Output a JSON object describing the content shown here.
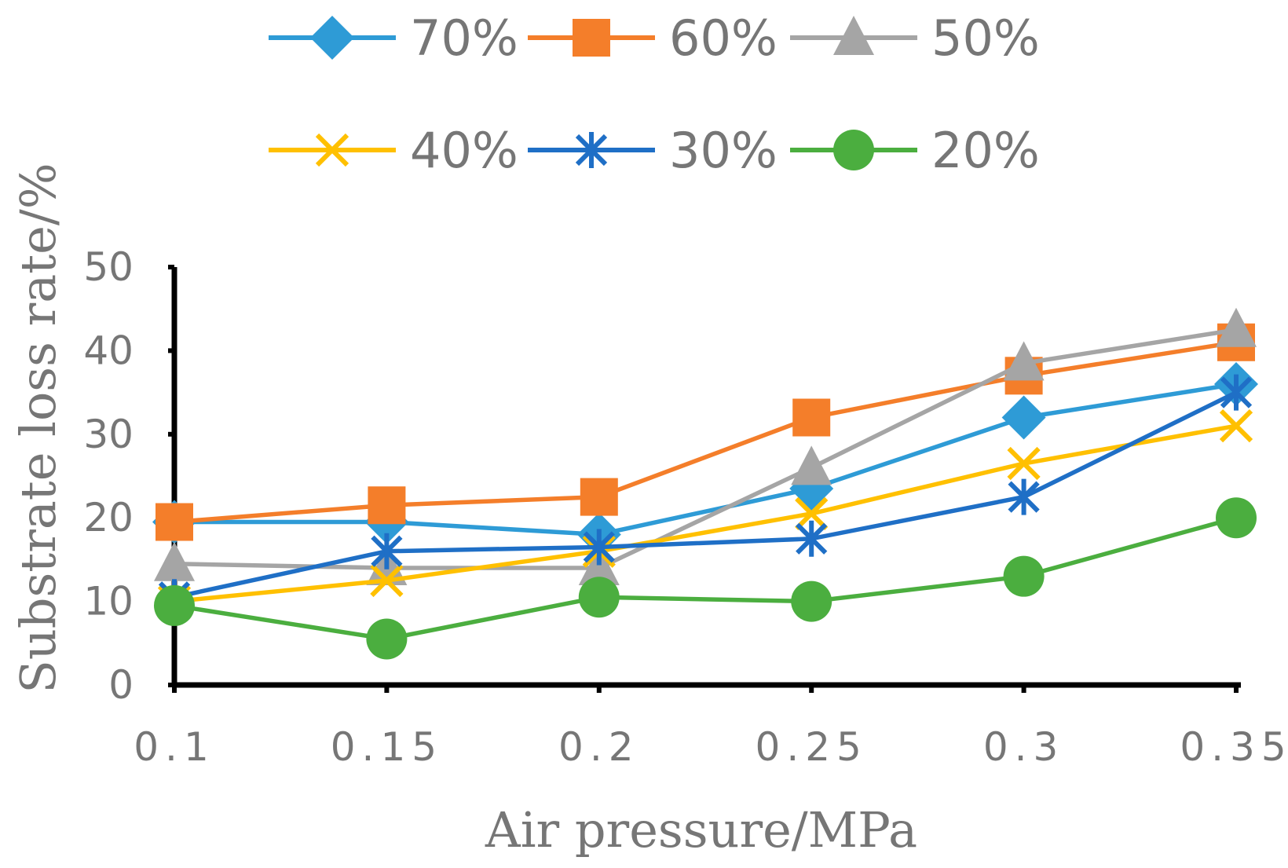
{
  "chart_data": {
    "type": "line",
    "title": "",
    "xlabel": "Air pressure/MPa",
    "ylabel": "Substrate loss rate/%",
    "x": [
      "0.1",
      "0.15",
      "0.2",
      "0.25",
      "0.3",
      "0.35"
    ],
    "ylim": [
      0,
      50
    ],
    "yticks": [
      "0",
      "10",
      "20",
      "30",
      "40",
      "50"
    ],
    "grid": false,
    "legend_position": "top",
    "series": [
      {
        "name": "70%",
        "color": "#2E9BD6",
        "marker": "diamond",
        "values": [
          19.5,
          19.5,
          18,
          23.5,
          32,
          36
        ]
      },
      {
        "name": "60%",
        "color": "#F47E2A",
        "marker": "square",
        "values": [
          19.5,
          21.5,
          22.5,
          32,
          37,
          41
        ]
      },
      {
        "name": "50%",
        "color": "#A5A5A5",
        "marker": "triangle",
        "values": [
          14.5,
          14,
          14,
          26,
          38.5,
          42.5
        ]
      },
      {
        "name": "40%",
        "color": "#FFC000",
        "marker": "x",
        "values": [
          10,
          12.5,
          16,
          20.5,
          26.5,
          31
        ]
      },
      {
        "name": "30%",
        "color": "#1F6FC6",
        "marker": "star",
        "values": [
          10.5,
          16,
          16.5,
          17.5,
          22.5,
          35
        ]
      },
      {
        "name": "20%",
        "color": "#4BAE3F",
        "marker": "circle",
        "values": [
          9.5,
          5.5,
          10.5,
          10,
          13,
          20
        ]
      }
    ]
  }
}
